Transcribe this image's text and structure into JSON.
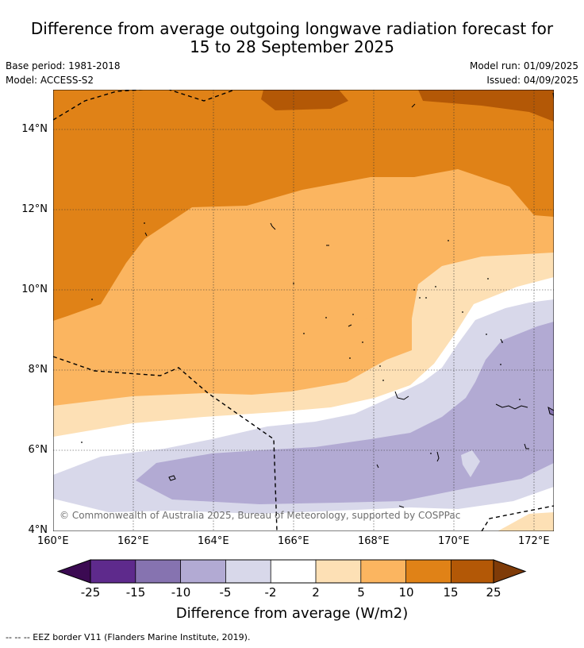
{
  "header": {
    "title_line1": "Difference from average outgoing longwave radiation forecast for",
    "title_line2": "15 to 28 September 2025",
    "base_period": "Base period: 1981-2018",
    "model": "Model: ACCESS-S2",
    "model_run": "Model run: 01/09/2025",
    "issued": "Issued: 04/09/2025"
  },
  "map": {
    "lat_labels": [
      "14°N",
      "12°N",
      "10°N",
      "8°N",
      "6°N",
      "4°N"
    ],
    "lon_labels": [
      "160°E",
      "162°E",
      "164°E",
      "166°E",
      "168°E",
      "170°E",
      "172°E"
    ],
    "copyright": "© Commonwealth of Australia 2025, Bureau of Meteorology, supported by COSPPac"
  },
  "colorbar": {
    "labels": [
      "-25",
      "-15",
      "-10",
      "-5",
      "-2",
      "2",
      "5",
      "10",
      "15",
      "25"
    ],
    "colors": [
      "#3b0a52",
      "#5e2a8c",
      "#8673b0",
      "#b2aad3",
      "#d8d8ea",
      "#ffffff",
      "#fde0b5",
      "#fbb560",
      "#e08217",
      "#b35806",
      "#7f3b08"
    ],
    "title": "Difference from average (W/m2)"
  },
  "footer": {
    "legend": "--  --  -- EEZ border V11 (Flanders Marine Institute, 2019)."
  }
}
